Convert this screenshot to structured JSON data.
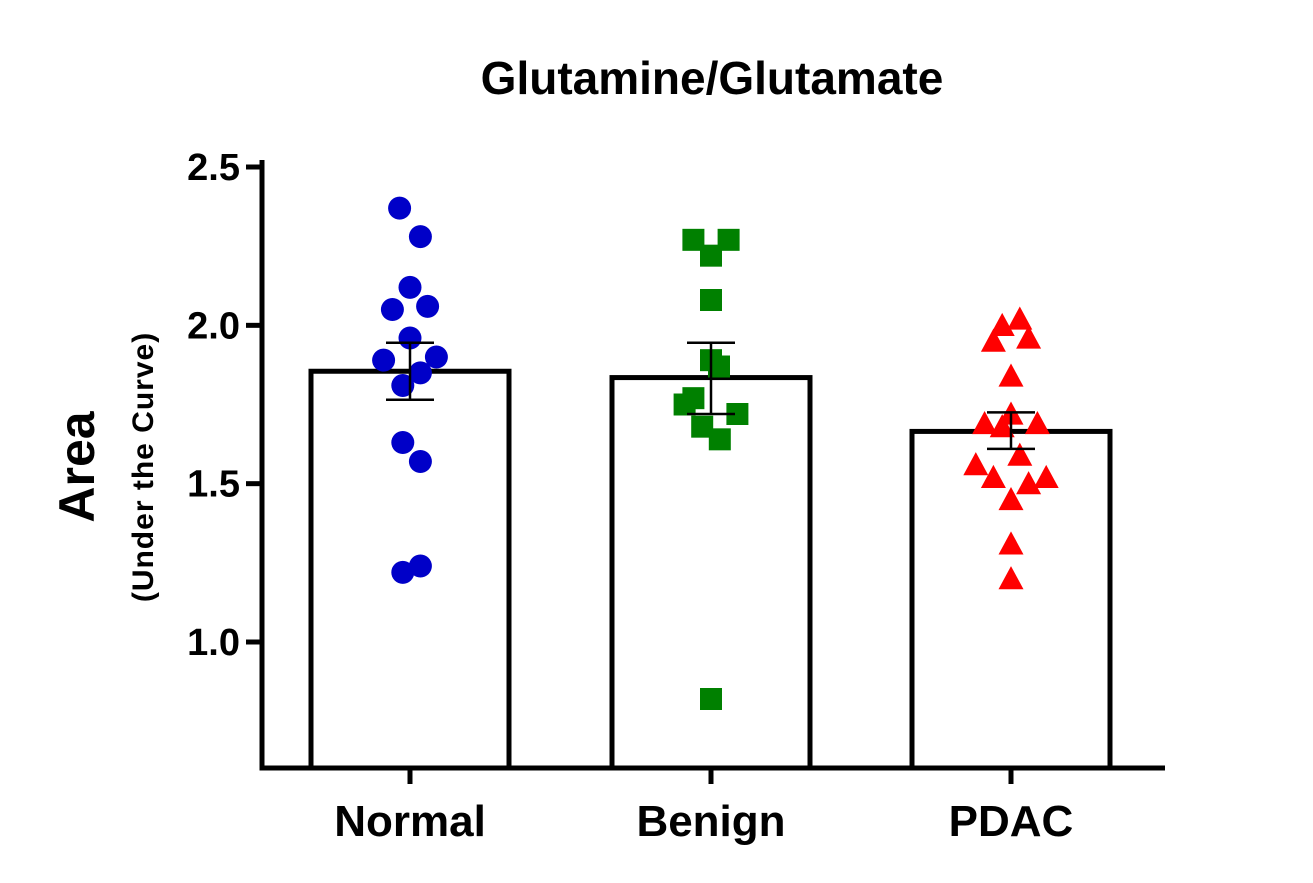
{
  "chart_data": {
    "type": "bar",
    "title": "Glutamine/Glutamate",
    "xlabel": "",
    "ylabel": "Area",
    "ylabel_sub": "(Under the Curve)",
    "ylim": [
      0.6,
      2.5
    ],
    "yticks": [
      1.0,
      1.5,
      2.0,
      2.5
    ],
    "ytick_labels": [
      "1.0",
      "1.5",
      "2.0",
      "2.5"
    ],
    "categories": [
      "Normal",
      "Benign",
      "PDAC"
    ],
    "values": [
      1.855,
      1.835,
      1.665
    ],
    "error_bars": [
      {
        "lower": 1.765,
        "upper": 1.945
      },
      {
        "lower": 1.72,
        "upper": 1.945
      },
      {
        "lower": 1.61,
        "upper": 1.725
      }
    ],
    "series": [
      {
        "name": "Normal",
        "marker": "circle",
        "color": "#0000c8",
        "points": [
          {
            "offset": -0.13,
            "y": 2.37
          },
          {
            "offset": 0.13,
            "y": 2.28
          },
          {
            "offset": 0.0,
            "y": 2.12
          },
          {
            "offset": -0.22,
            "y": 2.05
          },
          {
            "offset": 0.22,
            "y": 2.06
          },
          {
            "offset": 0.0,
            "y": 1.96
          },
          {
            "offset": -0.33,
            "y": 1.89
          },
          {
            "offset": 0.33,
            "y": 1.9
          },
          {
            "offset": -0.09,
            "y": 1.81
          },
          {
            "offset": 0.13,
            "y": 1.85
          },
          {
            "offset": -0.09,
            "y": 1.63
          },
          {
            "offset": 0.13,
            "y": 1.57
          },
          {
            "offset": -0.09,
            "y": 1.22
          },
          {
            "offset": 0.13,
            "y": 1.24
          }
        ]
      },
      {
        "name": "Benign",
        "marker": "square",
        "color": "#008000",
        "points": [
          {
            "offset": -0.22,
            "y": 2.27
          },
          {
            "offset": 0.22,
            "y": 2.27
          },
          {
            "offset": 0.0,
            "y": 2.22
          },
          {
            "offset": 0.0,
            "y": 2.08
          },
          {
            "offset": 0.0,
            "y": 1.89
          },
          {
            "offset": 0.1,
            "y": 1.87
          },
          {
            "offset": -0.22,
            "y": 1.77
          },
          {
            "offset": -0.33,
            "y": 1.75
          },
          {
            "offset": 0.33,
            "y": 1.72
          },
          {
            "offset": -0.11,
            "y": 1.68
          },
          {
            "offset": 0.11,
            "y": 1.64
          },
          {
            "offset": 0.0,
            "y": 0.82
          }
        ]
      },
      {
        "name": "PDAC",
        "marker": "triangle",
        "color": "#ff0000",
        "points": [
          {
            "offset": -0.11,
            "y": 2.0
          },
          {
            "offset": 0.11,
            "y": 2.02
          },
          {
            "offset": -0.22,
            "y": 1.95
          },
          {
            "offset": 0.22,
            "y": 1.96
          },
          {
            "offset": 0.0,
            "y": 1.84
          },
          {
            "offset": 0.0,
            "y": 1.72
          },
          {
            "offset": -0.33,
            "y": 1.69
          },
          {
            "offset": -0.11,
            "y": 1.68
          },
          {
            "offset": 0.33,
            "y": 1.69
          },
          {
            "offset": 0.11,
            "y": 1.59
          },
          {
            "offset": -0.44,
            "y": 1.56
          },
          {
            "offset": -0.22,
            "y": 1.52
          },
          {
            "offset": 0.22,
            "y": 1.5
          },
          {
            "offset": 0.44,
            "y": 1.52
          },
          {
            "offset": 0.0,
            "y": 1.45
          },
          {
            "offset": 0.0,
            "y": 1.31
          },
          {
            "offset": 0.0,
            "y": 1.2
          }
        ]
      }
    ]
  }
}
